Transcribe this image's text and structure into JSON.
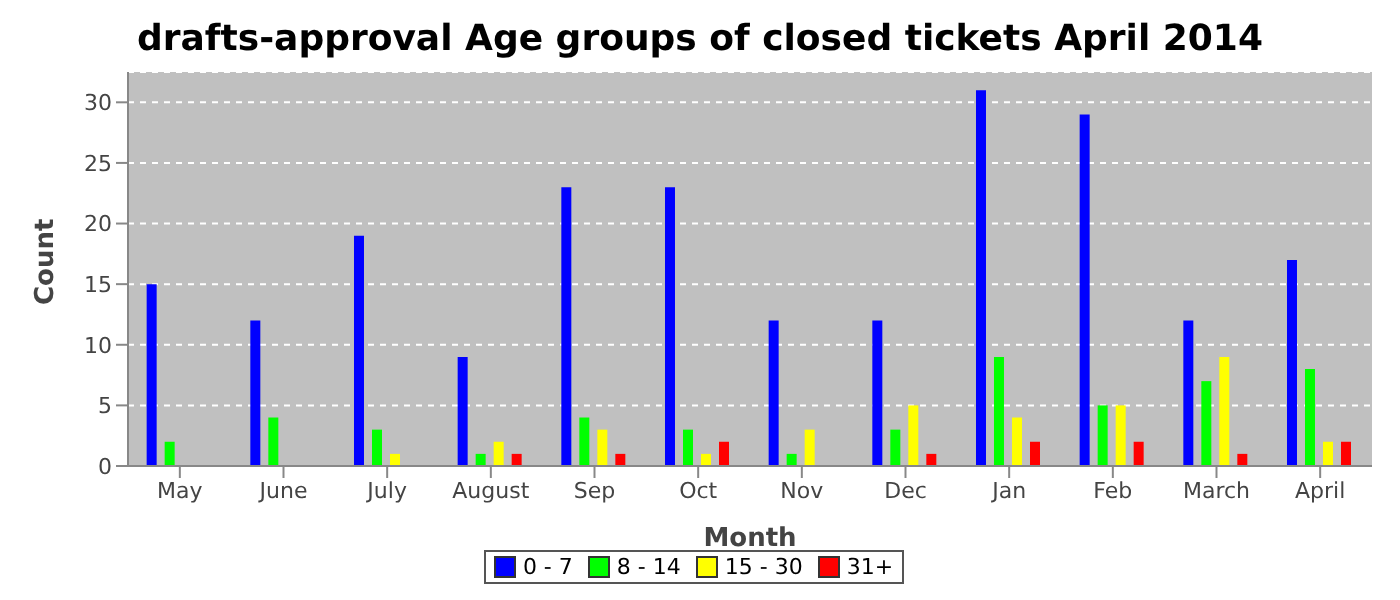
{
  "chart_data": {
    "type": "bar",
    "title": "drafts-approval Age groups of closed tickets April 2014",
    "xlabel": "Month",
    "ylabel": "Count",
    "categories": [
      "May",
      "June",
      "July",
      "August",
      "Sep",
      "Oct",
      "Nov",
      "Dec",
      "Jan",
      "Feb",
      "March",
      "April"
    ],
    "series": [
      {
        "name": "0 - 7",
        "color": "#0000ff",
        "values": [
          15,
          12,
          19,
          9,
          23,
          23,
          12,
          12,
          31,
          29,
          12,
          17
        ]
      },
      {
        "name": "8 - 14",
        "color": "#00ff00",
        "values": [
          2,
          4,
          3,
          1,
          4,
          3,
          1,
          3,
          9,
          5,
          7,
          8
        ]
      },
      {
        "name": "15 - 30",
        "color": "#ffff00",
        "values": [
          0,
          0,
          1,
          2,
          3,
          1,
          3,
          5,
          4,
          5,
          9,
          2
        ]
      },
      {
        "name": "31+",
        "color": "#ff0000",
        "values": [
          0,
          0,
          0,
          1,
          1,
          2,
          0,
          1,
          2,
          2,
          1,
          2
        ]
      }
    ],
    "ylim": [
      0,
      32.5
    ],
    "yticks": [
      0,
      5,
      10,
      15,
      20,
      25,
      30
    ],
    "grid": "y",
    "legend": "bottom"
  }
}
